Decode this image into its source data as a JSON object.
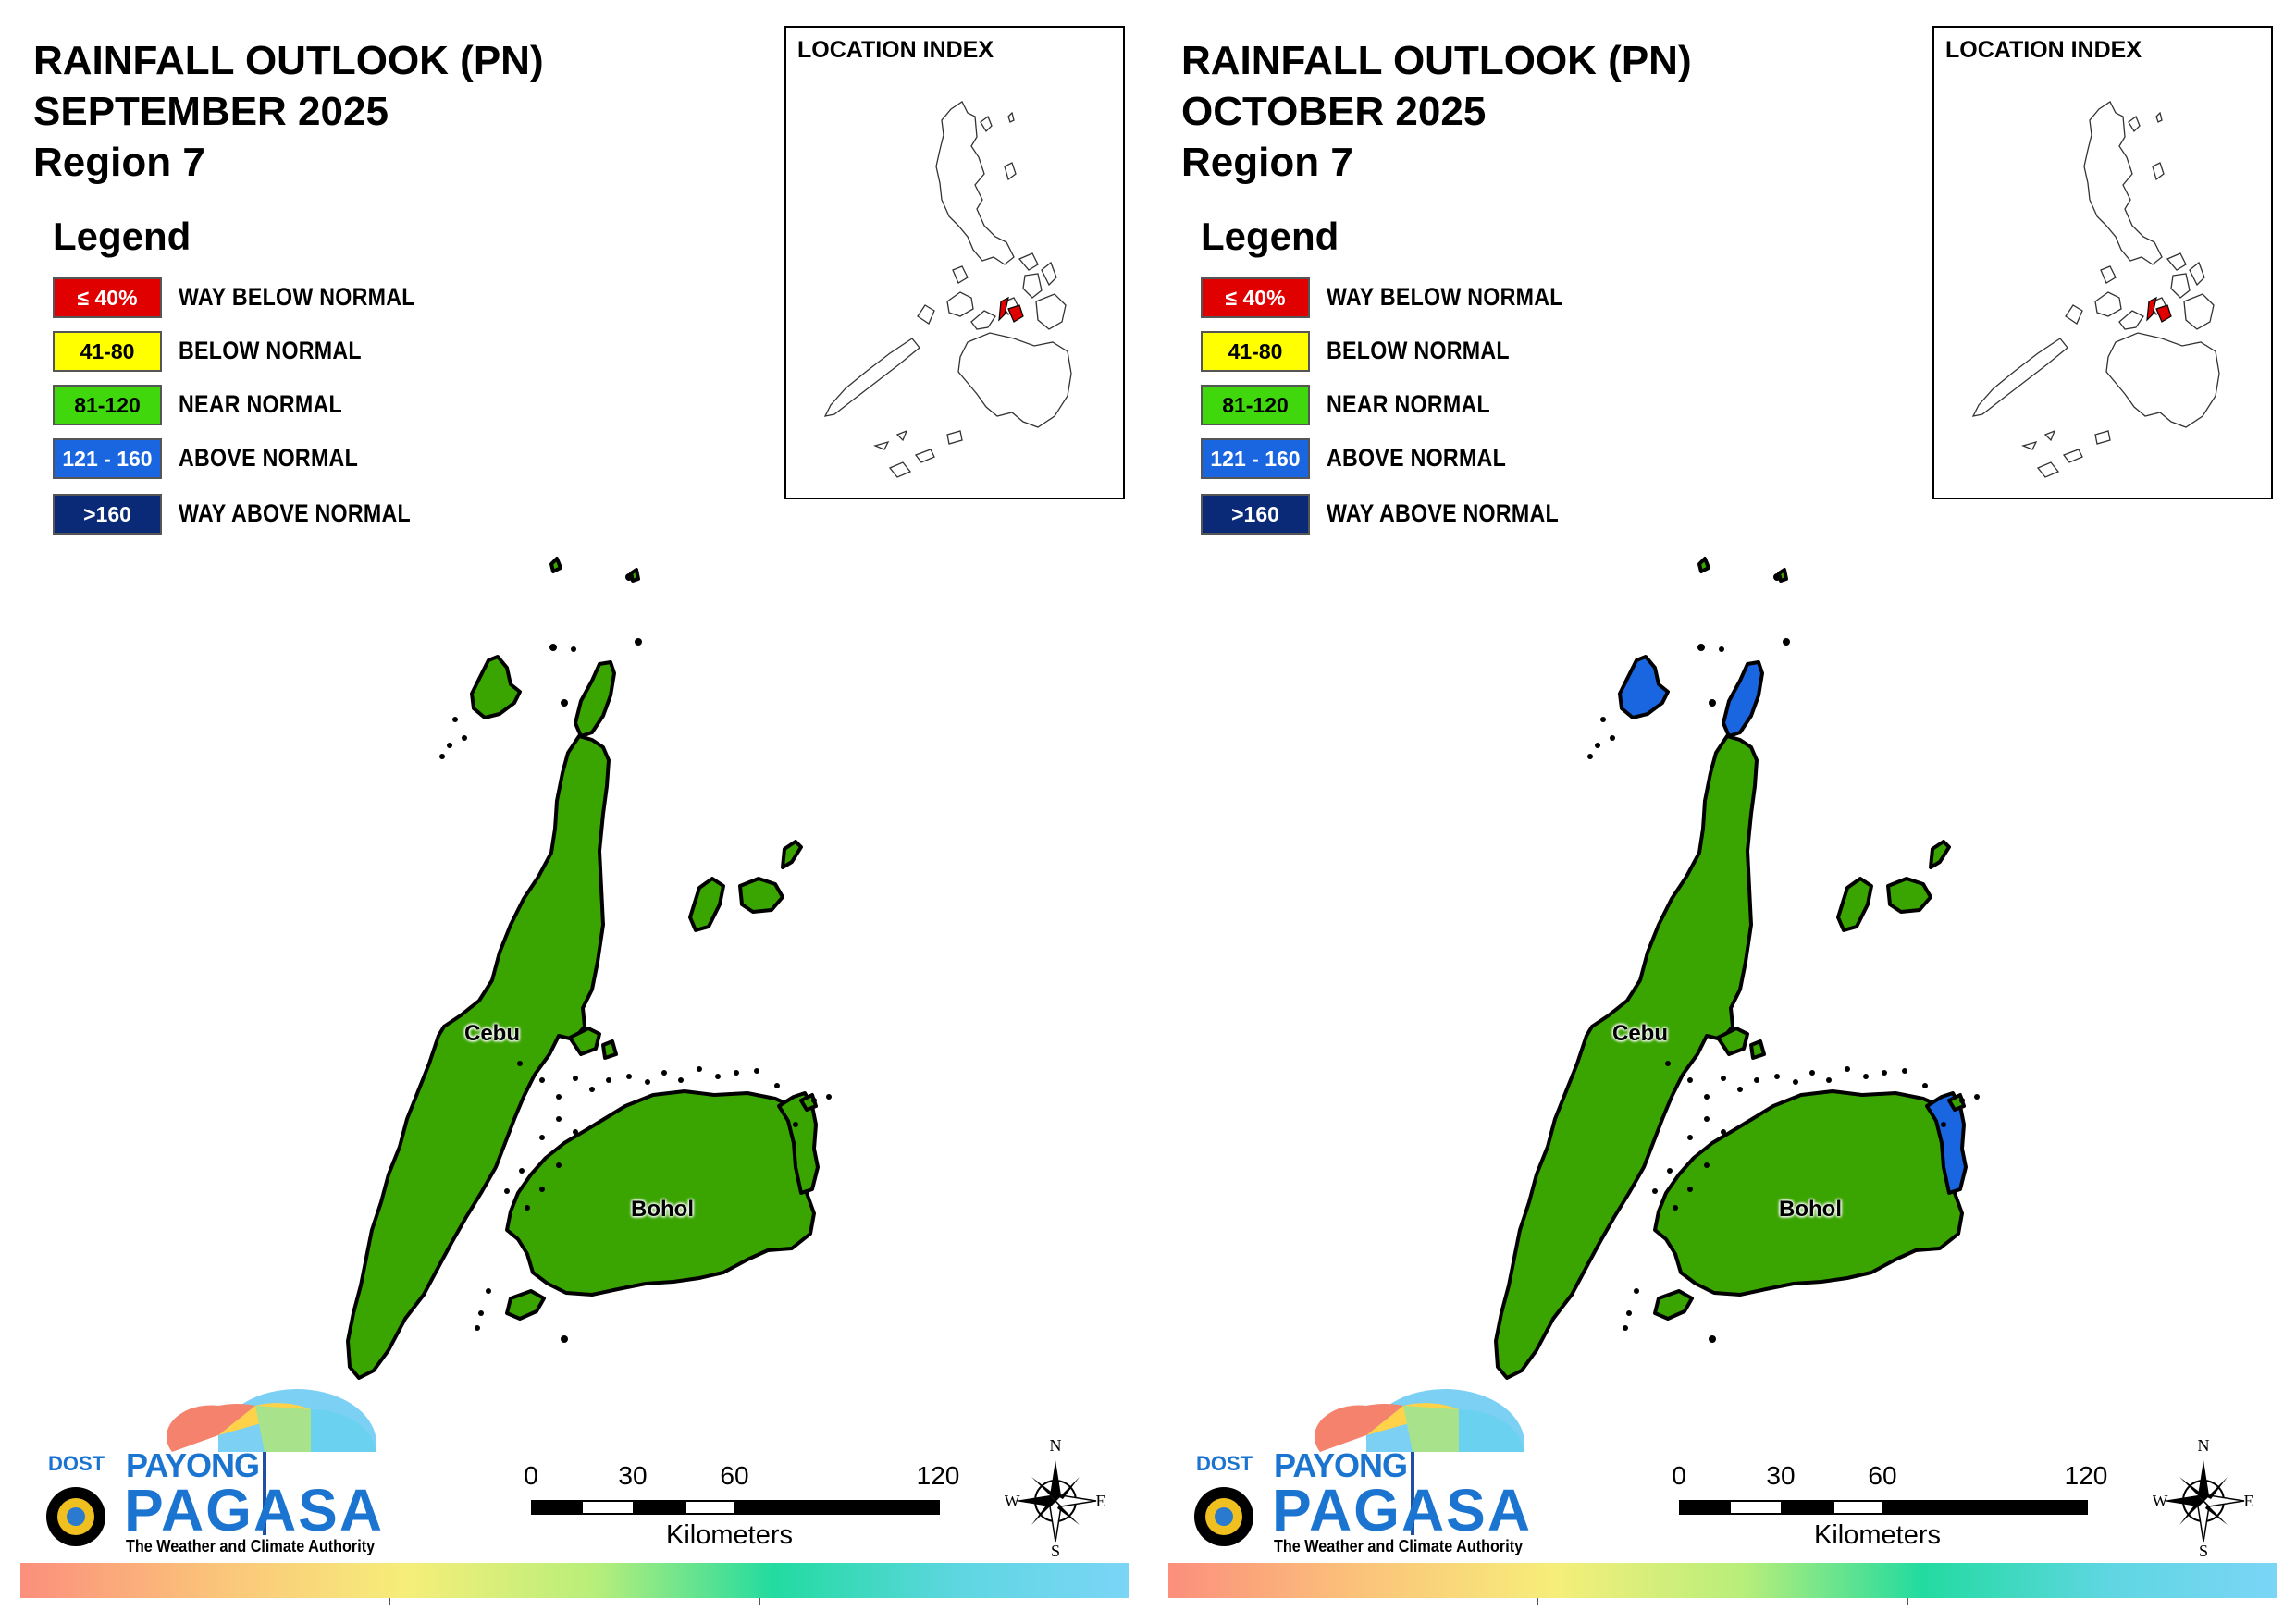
{
  "panels": [
    {
      "title_line1": "RAINFALL OUTLOOK (PN)",
      "title_line2": "SEPTEMBER 2025",
      "title_line3": "Region 7",
      "legend_heading": "Legend",
      "legend": [
        {
          "range": "≤ 40%",
          "label": "WAY BELOW NORMAL",
          "color": "#e00000",
          "text_color": "#ffffff"
        },
        {
          "range": "41-80",
          "label": "BELOW NORMAL",
          "color": "#ffff00",
          "text_color": "#000000"
        },
        {
          "range": "81-120",
          "label": "NEAR NORMAL",
          "color": "#40d80c",
          "text_color": "#000000"
        },
        {
          "range": "121 - 160",
          "label": "ABOVE NORMAL",
          "color": "#1a66e0",
          "text_color": "#ffffff"
        },
        {
          "range": ">160",
          "label": "WAY ABOVE NORMAL",
          "color": "#0a2a78",
          "text_color": "#ffffff"
        }
      ],
      "index_title": "LOCATION INDEX",
      "province_labels": {
        "cebu": "Cebu",
        "bohol": "Bohol"
      },
      "province_categories": {
        "cebu": "NEAR NORMAL",
        "bohol": "NEAR NORMAL",
        "bantayan": "NEAR NORMAL",
        "north_cebu_tip": "NEAR NORMAL",
        "bohol_east_coast": "NEAR NORMAL"
      },
      "fill_colors": {
        "near_normal": "#3aa500",
        "above_normal": "#1a66e0"
      },
      "scale": {
        "ticks": [
          "0",
          "30",
          "60",
          "120"
        ],
        "unit": "Kilometers"
      },
      "compass": {
        "n": "N",
        "e": "E",
        "s": "S",
        "w": "W"
      },
      "logo": {
        "dost": "DOST",
        "payong": "PAYONG",
        "pagasa": "PAGASA",
        "tagline": "The Weather and Climate Authority"
      }
    },
    {
      "title_line1": "RAINFALL OUTLOOK (PN)",
      "title_line2": "OCTOBER 2025",
      "title_line3": "Region 7",
      "legend_heading": "Legend",
      "legend": [
        {
          "range": "≤ 40%",
          "label": "WAY BELOW NORMAL",
          "color": "#e00000",
          "text_color": "#ffffff"
        },
        {
          "range": "41-80",
          "label": "BELOW NORMAL",
          "color": "#ffff00",
          "text_color": "#000000"
        },
        {
          "range": "81-120",
          "label": "NEAR NORMAL",
          "color": "#40d80c",
          "text_color": "#000000"
        },
        {
          "range": "121 - 160",
          "label": "ABOVE NORMAL",
          "color": "#1a66e0",
          "text_color": "#ffffff"
        },
        {
          "range": ">160",
          "label": "WAY ABOVE NORMAL",
          "color": "#0a2a78",
          "text_color": "#ffffff"
        }
      ],
      "index_title": "LOCATION INDEX",
      "province_labels": {
        "cebu": "Cebu",
        "bohol": "Bohol"
      },
      "province_categories": {
        "cebu": "NEAR NORMAL",
        "bohol": "NEAR NORMAL",
        "bantayan": "ABOVE NORMAL",
        "north_cebu_tip": "ABOVE NORMAL",
        "bohol_east_coast": "ABOVE NORMAL"
      },
      "fill_colors": {
        "near_normal": "#3aa500",
        "above_normal": "#1a66e0"
      },
      "scale": {
        "ticks": [
          "0",
          "30",
          "60",
          "120"
        ],
        "unit": "Kilometers"
      },
      "compass": {
        "n": "N",
        "e": "E",
        "s": "S",
        "w": "W"
      },
      "logo": {
        "dost": "DOST",
        "payong": "PAYONG",
        "pagasa": "PAGASA",
        "tagline": "The Weather and Climate Authority"
      }
    }
  ]
}
